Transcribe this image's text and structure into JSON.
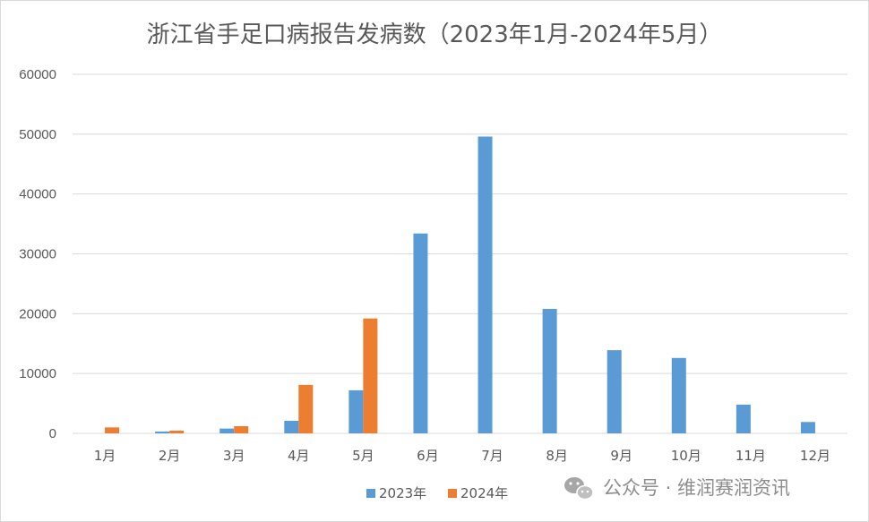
{
  "chart_data": {
    "type": "bar",
    "title": "浙江省手足口病报告发病数（2023年1月-2024年5月）",
    "categories": [
      "1月",
      "2月",
      "3月",
      "4月",
      "5月",
      "6月",
      "7月",
      "8月",
      "9月",
      "10月",
      "11月",
      "12月"
    ],
    "series": [
      {
        "name": "2023年",
        "color": "#5b9bd5",
        "values": [
          0,
          300,
          800,
          2100,
          7200,
          33400,
          49600,
          20800,
          13900,
          12600,
          4800,
          1900
        ]
      },
      {
        "name": "2024年",
        "color": "#ed7d31",
        "values": [
          1000,
          450,
          1200,
          8100,
          19200,
          null,
          null,
          null,
          null,
          null,
          null,
          null
        ]
      }
    ],
    "ylim": [
      0,
      60000
    ],
    "yticks": [
      "0",
      "10000",
      "20000",
      "30000",
      "40000",
      "50000",
      "60000"
    ],
    "xlabel": "",
    "ylabel": "",
    "grid": true,
    "legend_position": "bottom"
  },
  "watermark": {
    "text": "公众号 · 维润赛润资讯",
    "icon": "wechat-icon"
  }
}
